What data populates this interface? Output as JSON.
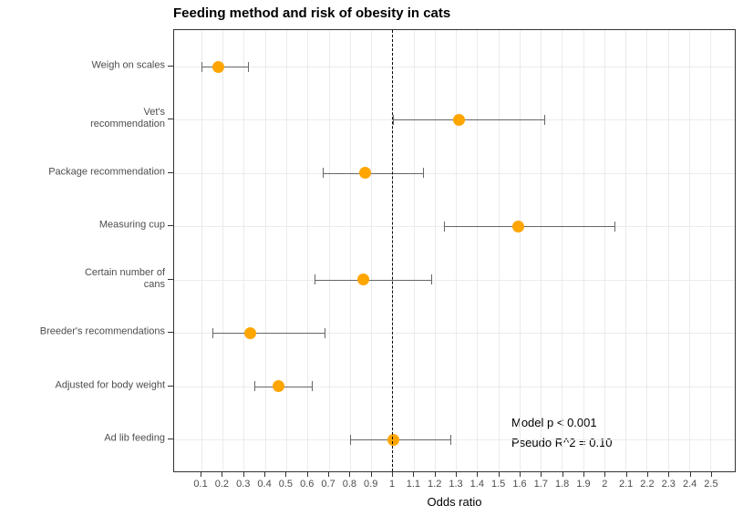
{
  "chart_data": {
    "type": "scatter",
    "subtype": "forest-plot-odds-ratio",
    "title": "Feeding method and risk of obesity in cats",
    "xlabel": "Odds ratio",
    "ylabel": "",
    "grid": true,
    "legend": "none",
    "reference_line_x": 1,
    "axis": {
      "range_min": -0.029,
      "range_max": 2.616,
      "tick_values": [
        0.1,
        0.2,
        0.3,
        0.4,
        0.5,
        0.6,
        0.7,
        0.8,
        0.9,
        1,
        1.1,
        1.2,
        1.3,
        1.4,
        1.5,
        1.6,
        1.7,
        1.8,
        1.9,
        2,
        2.1,
        2.2,
        2.3,
        2.4,
        2.5
      ],
      "tick_labels": [
        "0.1",
        "0.2",
        "0.3",
        "0.4",
        "0.5",
        "0.6",
        "0.7",
        "0.8",
        "0.9",
        "1",
        "1.1",
        "1.2",
        "1.3",
        "1.4",
        "1.5",
        "1.6",
        "1.7",
        "1.8",
        "1.9",
        "2",
        "2.1",
        "2.2",
        "2.3",
        "2.4",
        "2.5"
      ]
    },
    "rows": [
      {
        "label": "Weigh on scales",
        "label_lines": [
          "Weigh on scales"
        ],
        "or": 0.18,
        "ci_low": 0.1,
        "ci_high": 0.32
      },
      {
        "label": "Vet's recommendation",
        "label_lines": [
          "Vet's",
          "recommendation"
        ],
        "or": 1.31,
        "ci_low": 1.0,
        "ci_high": 1.71
      },
      {
        "label": "Package recommendation",
        "label_lines": [
          "Package recommendation"
        ],
        "or": 0.87,
        "ci_low": 0.67,
        "ci_high": 1.14
      },
      {
        "label": "Measuring cup",
        "label_lines": [
          "Measuring cup"
        ],
        "or": 1.59,
        "ci_low": 1.24,
        "ci_high": 2.04
      },
      {
        "label": "Certain number of cans",
        "label_lines": [
          "Certain number of",
          "cans"
        ],
        "or": 0.86,
        "ci_low": 0.63,
        "ci_high": 1.18
      },
      {
        "label": "Breeder's recommendations",
        "label_lines": [
          "Breeder's recommendations"
        ],
        "or": 0.33,
        "ci_low": 0.15,
        "ci_high": 0.68
      },
      {
        "label": "Adjusted for body weight",
        "label_lines": [
          "Adjusted for body weight"
        ],
        "or": 0.46,
        "ci_low": 0.35,
        "ci_high": 0.62
      },
      {
        "label": "Ad lib feeding",
        "label_lines": [
          "Ad lib feeding"
        ],
        "or": 1.0,
        "ci_low": 0.8,
        "ci_high": 1.27
      }
    ],
    "annotation": {
      "line1": "Model p < 0.001",
      "line2": "Pseudo R^2 = 0.10"
    },
    "colors": {
      "point": "#FFA500",
      "error_bar": "#666666",
      "grid": "#EBEBEB",
      "panel_border": "#333333",
      "reference_line": "#000000",
      "tick_label": "#4D4D4D",
      "y_label": "#4D4D4D",
      "title": "#000000",
      "annotation": "#000000"
    }
  }
}
